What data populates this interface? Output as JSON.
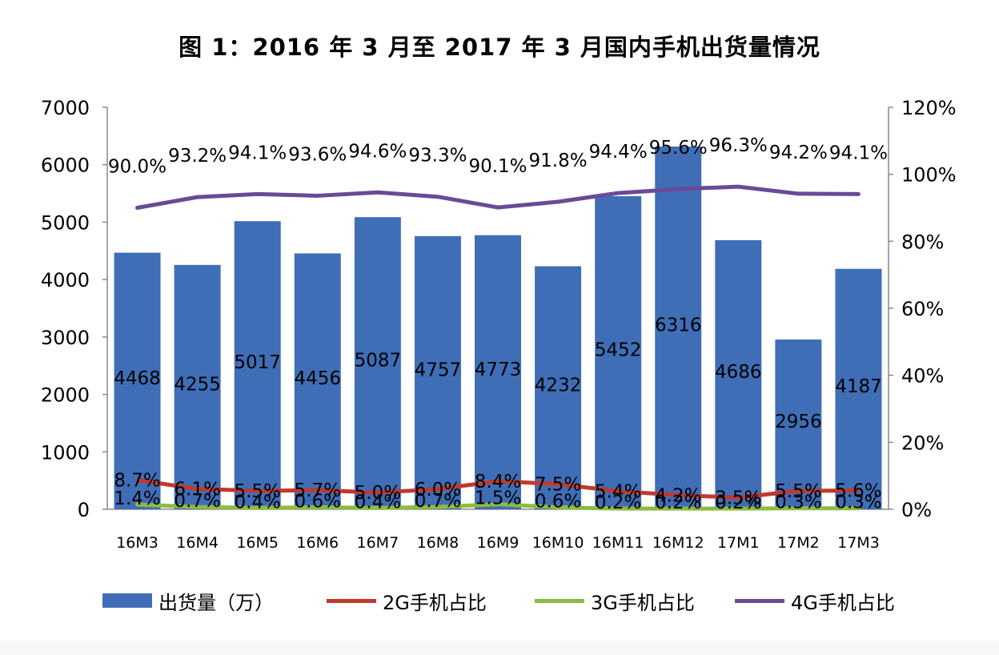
{
  "chart_data": {
    "type": "bar",
    "title": "图 1：2016 年 3 月至 2017 年 3 月国内手机出货量情况",
    "categories": [
      "16M3",
      "16M4",
      "16M5",
      "16M6",
      "16M7",
      "16M8",
      "16M9",
      "16M10",
      "16M11",
      "16M12",
      "17M1",
      "17M2",
      "17M3"
    ],
    "y_left": {
      "lim": [
        0,
        7000
      ],
      "ticks": [
        "0",
        "1000",
        "2000",
        "3000",
        "4000",
        "5000",
        "6000",
        "7000"
      ]
    },
    "y_right": {
      "lim": [
        0,
        1.2
      ],
      "ticks": [
        "0%",
        "20%",
        "40%",
        "60%",
        "80%",
        "100%",
        "120%"
      ]
    },
    "grid": false,
    "legend_position": "bottom",
    "series": [
      {
        "name": "出货量（万）",
        "type": "bar",
        "axis": "left",
        "color": "#3F6EB7",
        "values": [
          4468,
          4255,
          5017,
          4456,
          5087,
          4757,
          4773,
          4232,
          5452,
          6316,
          4686,
          2956,
          4187
        ],
        "labels": [
          "4468",
          "4255",
          "5017",
          "4456",
          "5087",
          "4757",
          "4773",
          "4232",
          "5452",
          "6316",
          "4686",
          "2956",
          "4187"
        ]
      },
      {
        "name": "2G手机占比",
        "type": "line",
        "axis": "right",
        "color": "#C0392F",
        "values": [
          0.087,
          0.061,
          0.055,
          0.057,
          0.05,
          0.06,
          0.084,
          0.075,
          0.054,
          0.042,
          0.035,
          0.055,
          0.056
        ],
        "labels": [
          "8.7%",
          "6.1%",
          "5.5%",
          "5.7%",
          "5.0%",
          "6.0%",
          "8.4%",
          "7.5%",
          "5.4%",
          "4.2%",
          "3.5%",
          "5.5%",
          "5.6%"
        ]
      },
      {
        "name": "3G手机占比",
        "type": "line",
        "axis": "right",
        "color": "#8DBB43",
        "values": [
          0.014,
          0.007,
          0.004,
          0.006,
          0.004,
          0.007,
          0.015,
          0.006,
          0.002,
          0.002,
          0.002,
          0.003,
          0.003
        ],
        "labels": [
          "1.4%",
          "0.7%",
          "0.4%",
          "0.6%",
          "0.4%",
          "0.7%",
          "1.5%",
          "0.6%",
          "0.2%",
          "0.2%",
          "0.2%",
          "0.3%",
          "0.3%"
        ]
      },
      {
        "name": "4G手机占比",
        "type": "line",
        "axis": "right",
        "color": "#6A4A97",
        "values": [
          0.9,
          0.932,
          0.941,
          0.936,
          0.946,
          0.933,
          0.901,
          0.918,
          0.944,
          0.956,
          0.963,
          0.942,
          0.941
        ],
        "labels": [
          "90.0%",
          "93.2%",
          "94.1%",
          "93.6%",
          "94.6%",
          "93.3%",
          "90.1%",
          "91.8%",
          "94.4%",
          "95.6%",
          "96.3%",
          "94.2%",
          "94.1%"
        ]
      }
    ]
  }
}
